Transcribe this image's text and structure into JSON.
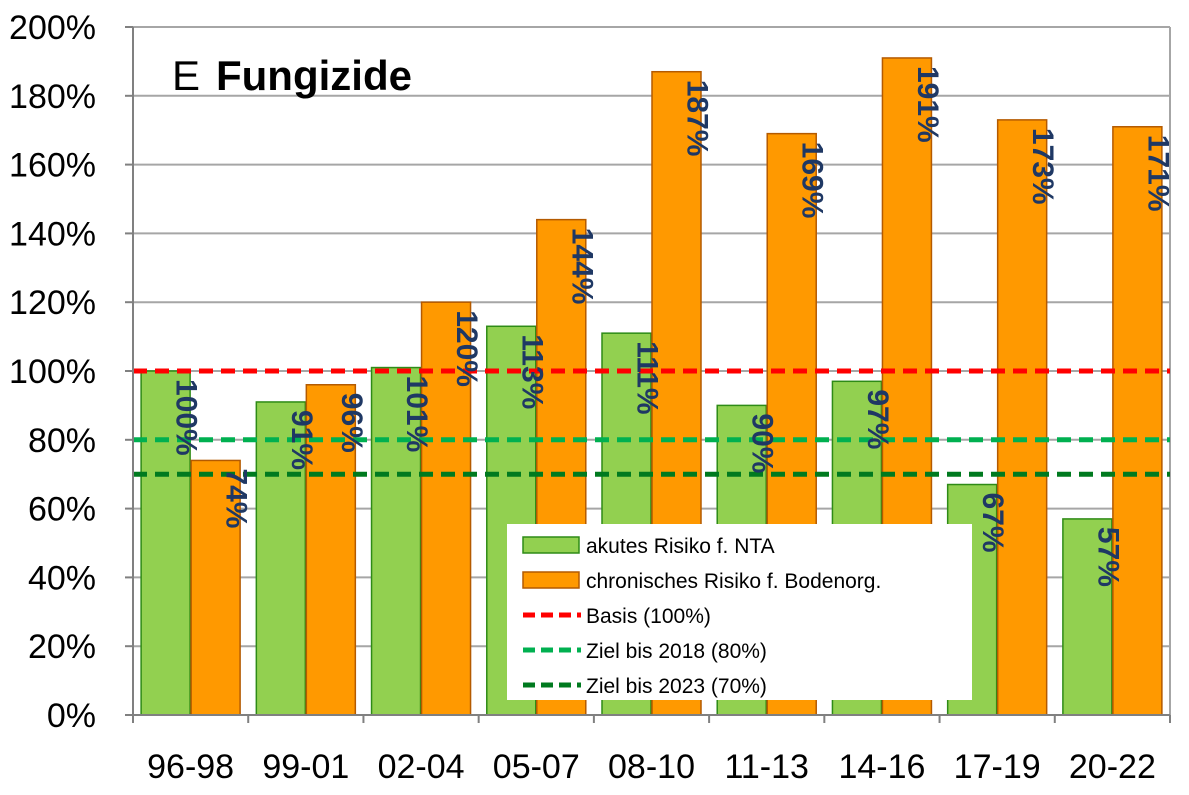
{
  "chart_data": {
    "type": "bar",
    "panel_letter": "E",
    "title": "Fungizide",
    "xlabel": "",
    "ylabel": "",
    "ylim": [
      0,
      200
    ],
    "yticks": [
      "0%",
      "20%",
      "40%",
      "60%",
      "80%",
      "100%",
      "120%",
      "140%",
      "160%",
      "180%",
      "200%"
    ],
    "categories": [
      "96-98",
      "99-01",
      "02-04",
      "05-07",
      "08-10",
      "11-13",
      "14-16",
      "17-19",
      "20-22"
    ],
    "series": [
      {
        "name": "akutes Risiko f. NTA",
        "color": "#92d050",
        "stroke": "#2e8b16",
        "values": [
          100,
          91,
          101,
          113,
          111,
          90,
          97,
          67,
          57
        ],
        "labels": [
          "100%",
          "91%",
          "101%",
          "113%",
          "111%",
          "90%",
          "97%",
          "67%",
          "57%"
        ]
      },
      {
        "name": "chronisches Risiko f. Bodenorg.",
        "color": "#ff9900",
        "stroke": "#b45a00",
        "values": [
          74,
          96,
          120,
          144,
          187,
          169,
          191,
          173,
          171
        ],
        "labels": [
          "74%",
          "96%",
          "120%",
          "144%",
          "187%",
          "169%",
          "191%",
          "173%",
          "171%"
        ]
      }
    ],
    "reference_lines": [
      {
        "name": "Basis (100%)",
        "value": 100,
        "color": "#ff0000"
      },
      {
        "name": "Ziel bis 2018 (80%)",
        "value": 80,
        "color": "#00b050"
      },
      {
        "name": "Ziel bis 2023 (70%)",
        "value": 70,
        "color": "#007a1f"
      }
    ],
    "grid": true,
    "legend_position": "bottom-center"
  }
}
